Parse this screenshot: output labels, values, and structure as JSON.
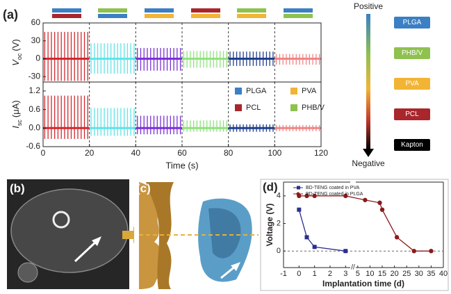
{
  "panel_labels": {
    "a": "(a)",
    "b": "(b)",
    "c": "(c)",
    "d": "(d)"
  },
  "chart_data": [
    {
      "type": "oscillation",
      "ylabel": "V",
      "ylabel_sub": "oc",
      "ylabel_unit": "(V)",
      "xlim": [
        0,
        120
      ],
      "ylim": [
        -39,
        60
      ],
      "yticks": [
        60,
        30,
        0,
        -30
      ],
      "baseline": 0,
      "segments": [
        {
          "color": "#d0282e",
          "x_start": 0,
          "x_end": 20,
          "peak": 45,
          "trough": -37
        },
        {
          "color": "#5fe3e8",
          "x_start": 20,
          "x_end": 40,
          "peak": 26,
          "trough": -25
        },
        {
          "color": "#7b30d8",
          "x_start": 40,
          "x_end": 60,
          "peak": 18,
          "trough": -20
        },
        {
          "color": "#8fe27c",
          "x_start": 60,
          "x_end": 80,
          "peak": 13,
          "trough": -15
        },
        {
          "color": "#1e3f8c",
          "x_start": 80,
          "x_end": 100,
          "peak": 12,
          "trough": -12
        },
        {
          "color": "#f08585",
          "x_start": 100,
          "x_end": 120,
          "peak": 8,
          "trough": -10
        }
      ]
    },
    {
      "type": "oscillation",
      "ylabel": "I",
      "ylabel_sub": "sc",
      "ylabel_unit": "(μA)",
      "xlabel": "Time (s)",
      "xlim": [
        0,
        120
      ],
      "xticks": [
        0,
        20,
        40,
        60,
        80,
        100,
        120
      ],
      "ylim": [
        -0.6,
        1.49
      ],
      "yticks": [
        1.2,
        0.6,
        {
          "value": 0,
          "label": "0.0"
        },
        -0.6
      ],
      "baseline": 0,
      "legend": [
        {
          "name": "PLGA",
          "color": "#3b7fc4"
        },
        {
          "name": "PVA",
          "color": "#f2b435"
        },
        {
          "name": "PCL",
          "color": "#a8262c"
        },
        {
          "name": "PHB/V",
          "color": "#8fc14f"
        }
      ],
      "segments": [
        {
          "color": "#d0282e",
          "x_start": 0,
          "x_end": 20,
          "peak": 1.05,
          "trough": -0.35
        },
        {
          "color": "#5fe3e8",
          "x_start": 20,
          "x_end": 40,
          "peak": 0.65,
          "trough": -0.25
        },
        {
          "color": "#7b30d8",
          "x_start": 40,
          "x_end": 60,
          "peak": 0.4,
          "trough": -0.2
        },
        {
          "color": "#8fe27c",
          "x_start": 60,
          "x_end": 80,
          "peak": 0.25,
          "trough": -0.12
        },
        {
          "color": "#1e3f8c",
          "x_start": 80,
          "x_end": 100,
          "peak": 0.12,
          "trough": -0.12
        },
        {
          "color": "#f08585",
          "x_start": 100,
          "x_end": 120,
          "peak": 0.1,
          "trough": -0.1
        }
      ]
    },
    {
      "type": "line",
      "xlabel": "Implantation time (d)",
      "ylabel": "Voltage (V)",
      "xlim": [
        -1,
        3.3
      ],
      "xticks": [
        -1,
        0,
        1,
        2,
        3
      ],
      "x2lim": [
        4.2,
        40
      ],
      "x2ticks": [
        5,
        10,
        15,
        20,
        25,
        30,
        35,
        40
      ],
      "ylim": [
        -1.2,
        5
      ],
      "yticks": [
        0,
        2,
        4
      ],
      "hline": 0,
      "legend_position": "upper left",
      "series": [
        {
          "name": "BD-TENG coated in PVA",
          "color": "#2b2f8f",
          "marker": "square",
          "x": [
            0,
            0.5,
            1,
            3
          ],
          "values": [
            3,
            1,
            0.3,
            0
          ]
        },
        {
          "name": "BD-TENG coated in PLGA",
          "color": "#8b1a1a",
          "marker": "circle",
          "x": [
            0,
            0.5,
            1,
            3,
            8,
            14,
            15,
            21,
            28,
            35
          ],
          "values": [
            4,
            4,
            4,
            4,
            3.7,
            3.5,
            3.0,
            1,
            0,
            0
          ]
        }
      ]
    }
  ],
  "triboelectric_series": {
    "top_label": "Positive",
    "bottom_label": "Negative",
    "materials": [
      {
        "name": "PLGA",
        "color": "#3b7fc4"
      },
      {
        "name": "PHB/V",
        "color": "#8fc14f"
      },
      {
        "name": "PVA",
        "color": "#f2b435"
      },
      {
        "name": "PCL",
        "color": "#a8262c"
      },
      {
        "name": "Kapton",
        "color": "#000000"
      }
    ]
  }
}
